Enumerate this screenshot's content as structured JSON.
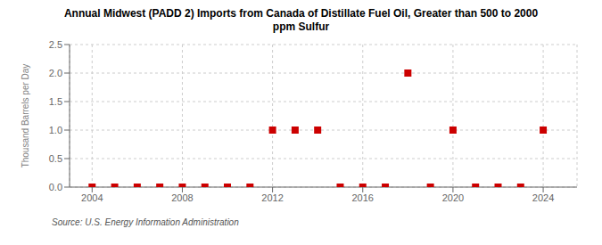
{
  "chart_data": {
    "type": "scatter",
    "title": "Annual Midwest (PADD 2) Imports from Canada of Distillate Fuel Oil, Greater than 500 to 2000\nppm Sulfur",
    "ylabel": "Thousand Barrels per Day",
    "source": "Source: U.S. Energy Information Administration",
    "x": [
      2004,
      2005,
      2006,
      2007,
      2008,
      2009,
      2010,
      2011,
      2012,
      2013,
      2014,
      2015,
      2016,
      2017,
      2018,
      2019,
      2020,
      2021,
      2022,
      2023,
      2024
    ],
    "values": [
      0.0,
      0.0,
      0.0,
      0.0,
      0.0,
      0.0,
      0.0,
      0.0,
      1.0,
      1.0,
      1.0,
      0.0,
      0.0,
      0.0,
      2.0,
      0.0,
      1.0,
      0.0,
      0.0,
      0.0,
      1.0
    ],
    "color": "#cc0000",
    "marker": "square",
    "xlim": [
      2003,
      2025.5
    ],
    "ylim": [
      0,
      2.5
    ],
    "xticks": [
      2004,
      2008,
      2012,
      2016,
      2020,
      2024
    ],
    "yticks": [
      {
        "value": 0,
        "label": "0.0"
      },
      0.5,
      {
        "value": 1,
        "label": "1.0"
      },
      1.5,
      {
        "value": 2,
        "label": "2.0"
      },
      2.5
    ],
    "grid": true
  }
}
